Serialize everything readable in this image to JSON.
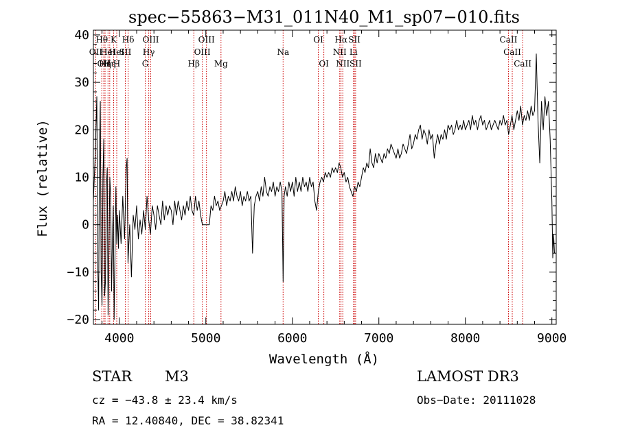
{
  "chart_data": {
    "type": "line",
    "title": "spec−55863−M31_011N40_M1_sp07−010.fits",
    "xlabel": "Wavelength (Å)",
    "ylabel": "Flux (relative)",
    "xlim": [
      3700,
      9050
    ],
    "ylim": [
      -21,
      41
    ],
    "xticks": [
      4000,
      5000,
      6000,
      7000,
      8000,
      9000
    ],
    "yticks": [
      -20,
      -10,
      0,
      10,
      20,
      30,
      40
    ],
    "ytick_labels": [
      "−20",
      "−10",
      "0",
      "10",
      "20",
      "30",
      "40"
    ],
    "grid": false,
    "series": [
      {
        "name": "spectrum",
        "points": [
          [
            3700,
            5
          ],
          [
            3720,
            14
          ],
          [
            3740,
            27
          ],
          [
            3750,
            -8
          ],
          [
            3760,
            -18
          ],
          [
            3770,
            14
          ],
          [
            3780,
            26
          ],
          [
            3790,
            -10
          ],
          [
            3800,
            -17
          ],
          [
            3810,
            10
          ],
          [
            3820,
            18
          ],
          [
            3830,
            -15
          ],
          [
            3840,
            -12
          ],
          [
            3850,
            8
          ],
          [
            3860,
            12
          ],
          [
            3870,
            -19
          ],
          [
            3880,
            -5
          ],
          [
            3890,
            10
          ],
          [
            3900,
            6
          ],
          [
            3910,
            -14
          ],
          [
            3920,
            -3
          ],
          [
            3930,
            4
          ],
          [
            3940,
            -20
          ],
          [
            3950,
            -6
          ],
          [
            3960,
            8
          ],
          [
            3970,
            -4
          ],
          [
            3980,
            2
          ],
          [
            3990,
            -5
          ],
          [
            4000,
            3
          ],
          [
            4020,
            -4
          ],
          [
            4040,
            6
          ],
          [
            4060,
            -3
          ],
          [
            4080,
            12
          ],
          [
            4090,
            14
          ],
          [
            4100,
            -8
          ],
          [
            4120,
            0
          ],
          [
            4140,
            -11
          ],
          [
            4160,
            2
          ],
          [
            4180,
            -1
          ],
          [
            4200,
            4
          ],
          [
            4220,
            -3
          ],
          [
            4240,
            1
          ],
          [
            4260,
            -2
          ],
          [
            4280,
            3
          ],
          [
            4300,
            -1
          ],
          [
            4320,
            6
          ],
          [
            4340,
            1
          ],
          [
            4360,
            -2
          ],
          [
            4380,
            4
          ],
          [
            4400,
            2
          ],
          [
            4420,
            -1
          ],
          [
            4440,
            4
          ],
          [
            4460,
            2
          ],
          [
            4480,
            0
          ],
          [
            4500,
            5
          ],
          [
            4520,
            1
          ],
          [
            4540,
            4
          ],
          [
            4560,
            2
          ],
          [
            4580,
            4
          ],
          [
            4600,
            3
          ],
          [
            4620,
            0
          ],
          [
            4640,
            5
          ],
          [
            4660,
            2
          ],
          [
            4680,
            5
          ],
          [
            4700,
            3
          ],
          [
            4720,
            1
          ],
          [
            4740,
            4
          ],
          [
            4760,
            2
          ],
          [
            4780,
            5
          ],
          [
            4800,
            3
          ],
          [
            4820,
            6
          ],
          [
            4840,
            3
          ],
          [
            4860,
            2
          ],
          [
            4880,
            6
          ],
          [
            4900,
            3
          ],
          [
            4920,
            5
          ],
          [
            4940,
            2
          ],
          [
            4960,
            0
          ],
          [
            4980,
            0
          ],
          [
            5000,
            0
          ],
          [
            5020,
            0
          ],
          [
            5040,
            0
          ],
          [
            5060,
            4
          ],
          [
            5080,
            3
          ],
          [
            5100,
            6
          ],
          [
            5120,
            4
          ],
          [
            5140,
            5
          ],
          [
            5160,
            3
          ],
          [
            5180,
            4
          ],
          [
            5200,
            5
          ],
          [
            5220,
            7
          ],
          [
            5240,
            4
          ],
          [
            5260,
            6
          ],
          [
            5280,
            5
          ],
          [
            5300,
            7
          ],
          [
            5320,
            5
          ],
          [
            5340,
            8
          ],
          [
            5360,
            6
          ],
          [
            5380,
            5
          ],
          [
            5400,
            7
          ],
          [
            5420,
            4
          ],
          [
            5440,
            6
          ],
          [
            5460,
            5
          ],
          [
            5480,
            7
          ],
          [
            5500,
            5
          ],
          [
            5520,
            6
          ],
          [
            5540,
            -6
          ],
          [
            5560,
            4
          ],
          [
            5580,
            6
          ],
          [
            5600,
            7
          ],
          [
            5620,
            5
          ],
          [
            5640,
            8
          ],
          [
            5660,
            6
          ],
          [
            5680,
            10
          ],
          [
            5700,
            7
          ],
          [
            5720,
            6
          ],
          [
            5740,
            8
          ],
          [
            5760,
            7
          ],
          [
            5780,
            9
          ],
          [
            5800,
            6
          ],
          [
            5820,
            8
          ],
          [
            5840,
            7
          ],
          [
            5860,
            9
          ],
          [
            5880,
            7
          ],
          [
            5893,
            -12
          ],
          [
            5905,
            6
          ],
          [
            5920,
            8
          ],
          [
            5940,
            6
          ],
          [
            5960,
            9
          ],
          [
            5980,
            7
          ],
          [
            6000,
            9
          ],
          [
            6020,
            6
          ],
          [
            6040,
            10
          ],
          [
            6060,
            7
          ],
          [
            6080,
            9
          ],
          [
            6100,
            7
          ],
          [
            6120,
            10
          ],
          [
            6140,
            8
          ],
          [
            6160,
            9
          ],
          [
            6180,
            7
          ],
          [
            6200,
            10
          ],
          [
            6220,
            8
          ],
          [
            6240,
            9
          ],
          [
            6260,
            5
          ],
          [
            6280,
            3
          ],
          [
            6300,
            7
          ],
          [
            6320,
            9
          ],
          [
            6340,
            10
          ],
          [
            6360,
            9
          ],
          [
            6380,
            11
          ],
          [
            6400,
            10
          ],
          [
            6420,
            11
          ],
          [
            6440,
            10
          ],
          [
            6460,
            12
          ],
          [
            6480,
            11
          ],
          [
            6500,
            12
          ],
          [
            6520,
            11
          ],
          [
            6540,
            13
          ],
          [
            6560,
            12
          ],
          [
            6580,
            10
          ],
          [
            6600,
            11
          ],
          [
            6620,
            9
          ],
          [
            6640,
            10
          ],
          [
            6660,
            8
          ],
          [
            6680,
            7
          ],
          [
            6700,
            6
          ],
          [
            6720,
            8
          ],
          [
            6740,
            7
          ],
          [
            6760,
            9
          ],
          [
            6780,
            8
          ],
          [
            6800,
            10
          ],
          [
            6820,
            12
          ],
          [
            6840,
            11
          ],
          [
            6860,
            13
          ],
          [
            6880,
            12
          ],
          [
            6900,
            16
          ],
          [
            6920,
            13
          ],
          [
            6940,
            12
          ],
          [
            6960,
            15
          ],
          [
            6980,
            13
          ],
          [
            7000,
            15
          ],
          [
            7020,
            14
          ],
          [
            7040,
            13
          ],
          [
            7060,
            15
          ],
          [
            7080,
            14
          ],
          [
            7100,
            16
          ],
          [
            7120,
            15
          ],
          [
            7140,
            17
          ],
          [
            7160,
            16
          ],
          [
            7180,
            15
          ],
          [
            7200,
            14
          ],
          [
            7220,
            16
          ],
          [
            7240,
            14
          ],
          [
            7260,
            15
          ],
          [
            7280,
            17
          ],
          [
            7300,
            16
          ],
          [
            7320,
            15
          ],
          [
            7340,
            17
          ],
          [
            7360,
            19
          ],
          [
            7380,
            16
          ],
          [
            7400,
            17
          ],
          [
            7420,
            19
          ],
          [
            7440,
            18
          ],
          [
            7460,
            20
          ],
          [
            7480,
            21
          ],
          [
            7500,
            18
          ],
          [
            7520,
            20
          ],
          [
            7540,
            19
          ],
          [
            7560,
            17
          ],
          [
            7580,
            20
          ],
          [
            7600,
            18
          ],
          [
            7620,
            19
          ],
          [
            7640,
            14
          ],
          [
            7660,
            17
          ],
          [
            7680,
            19
          ],
          [
            7700,
            17
          ],
          [
            7720,
            19
          ],
          [
            7740,
            18
          ],
          [
            7760,
            20
          ],
          [
            7780,
            18
          ],
          [
            7800,
            21
          ],
          [
            7820,
            20
          ],
          [
            7840,
            21
          ],
          [
            7860,
            19
          ],
          [
            7880,
            20
          ],
          [
            7900,
            22
          ],
          [
            7920,
            20
          ],
          [
            7940,
            21
          ],
          [
            7960,
            20
          ],
          [
            7980,
            22
          ],
          [
            8000,
            20
          ],
          [
            8020,
            21
          ],
          [
            8040,
            22
          ],
          [
            8060,
            20
          ],
          [
            8080,
            23
          ],
          [
            8100,
            21
          ],
          [
            8120,
            22
          ],
          [
            8140,
            20
          ],
          [
            8160,
            22
          ],
          [
            8180,
            23
          ],
          [
            8200,
            21
          ],
          [
            8220,
            22
          ],
          [
            8240,
            20
          ],
          [
            8260,
            21
          ],
          [
            8280,
            22
          ],
          [
            8300,
            20
          ],
          [
            8320,
            21
          ],
          [
            8340,
            22
          ],
          [
            8360,
            21
          ],
          [
            8380,
            20
          ],
          [
            8400,
            22
          ],
          [
            8420,
            21
          ],
          [
            8440,
            23
          ],
          [
            8460,
            21
          ],
          [
            8480,
            22
          ],
          [
            8500,
            19
          ],
          [
            8520,
            21
          ],
          [
            8540,
            23
          ],
          [
            8560,
            20
          ],
          [
            8580,
            22
          ],
          [
            8600,
            24
          ],
          [
            8620,
            22
          ],
          [
            8640,
            25
          ],
          [
            8660,
            21
          ],
          [
            8680,
            23
          ],
          [
            8700,
            22
          ],
          [
            8720,
            24
          ],
          [
            8740,
            22
          ],
          [
            8760,
            25
          ],
          [
            8780,
            23
          ],
          [
            8800,
            24
          ],
          [
            8820,
            36
          ],
          [
            8840,
            22
          ],
          [
            8860,
            13
          ],
          [
            8880,
            26
          ],
          [
            8900,
            20
          ],
          [
            8920,
            27
          ],
          [
            8940,
            23
          ],
          [
            8960,
            26
          ],
          [
            8980,
            18
          ],
          [
            9000,
            5
          ],
          [
            9010,
            -7
          ],
          [
            9020,
            -2
          ],
          [
            9030,
            -6
          ]
        ]
      }
    ],
    "line_markers": [
      {
        "w": 3727,
        "label": "OII",
        "row": 2
      },
      {
        "w": 3797,
        "label": "Hθ",
        "row": 1
      },
      {
        "w": 3820,
        "label": "OII",
        "row": 3
      },
      {
        "w": 3835,
        "label": "Hη",
        "row": 3
      },
      {
        "w": 3869,
        "label": "HeI",
        "row": 2
      },
      {
        "w": 3889,
        "label": "Hη",
        "row": 3
      },
      {
        "w": 3934,
        "label": "K",
        "row": 1
      },
      {
        "w": 3970,
        "label": "H",
        "row": 3
      },
      {
        "w": 3970,
        "label": "HeI",
        "row": 2
      },
      {
        "w": 4069,
        "label": "SII",
        "row": 2
      },
      {
        "w": 4102,
        "label": "Hδ",
        "row": 1
      },
      {
        "w": 4300,
        "label": "G",
        "row": 3
      },
      {
        "w": 4340,
        "label": "Hγ",
        "row": 2
      },
      {
        "w": 4363,
        "label": "OIII",
        "row": 1
      },
      {
        "w": 4861,
        "label": "Hβ",
        "row": 3
      },
      {
        "w": 4959,
        "label": "OIII",
        "row": 2
      },
      {
        "w": 5007,
        "label": "OIII",
        "row": 1
      },
      {
        "w": 5175,
        "label": "Mg",
        "row": 3
      },
      {
        "w": 5893,
        "label": "Na",
        "row": 2
      },
      {
        "w": 6300,
        "label": "OI",
        "row": 1
      },
      {
        "w": 6364,
        "label": "OI",
        "row": 3
      },
      {
        "w": 6548,
        "label": "NII",
        "row": 2
      },
      {
        "w": 6563,
        "label": "Hα",
        "row": 1
      },
      {
        "w": 6583,
        "label": "NII",
        "row": 3
      },
      {
        "w": 6707,
        "label": "Li",
        "row": 2
      },
      {
        "w": 6717,
        "label": "SII",
        "row": 1
      },
      {
        "w": 6731,
        "label": "SII",
        "row": 3
      },
      {
        "w": 8498,
        "label": "CaII",
        "row": 1
      },
      {
        "w": 8542,
        "label": "CaII",
        "row": 2
      },
      {
        "w": 8662,
        "label": "CaII",
        "row": 3
      }
    ]
  },
  "info": {
    "object_type": "STAR",
    "subclass": "M3",
    "survey": "LAMOST DR3",
    "cz_line": "cz = −43.8 ± 23.4 km/s",
    "obs_date_line": "Obs−Date: 20111028",
    "radec_line": "RA =  12.40840, DEC =  38.82341"
  },
  "colors": {
    "spectrum": "#000000",
    "marker": "#cc0000",
    "axis": "#000000"
  }
}
